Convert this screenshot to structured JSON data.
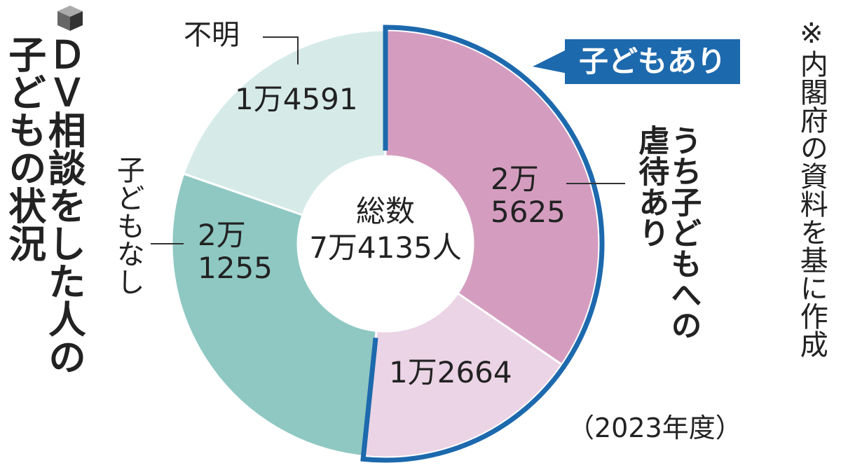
{
  "chart_data": {
    "type": "donut",
    "title": "ＤＶ相談をした人の子どもの状況",
    "note": "※内閣府の資料を基に作成",
    "period": "（2023年度）",
    "group_label": "子どもあり",
    "center_label": "総数",
    "total": 74135,
    "total_value_label": "7万4135人",
    "categories": [
      "うち子どもへの虐待あり",
      null,
      "子どもなし",
      "不明"
    ],
    "values": [
      25625,
      12664,
      21255,
      14591
    ],
    "value_labels": [
      "2万\n5625",
      "1万2664",
      "2万\n1255",
      "1万4591"
    ],
    "colors": [
      "#d49dc0",
      "#ebd4e5",
      "#8fc8c2",
      "#d6ebe8"
    ],
    "group_color": "#1d69ad"
  }
}
